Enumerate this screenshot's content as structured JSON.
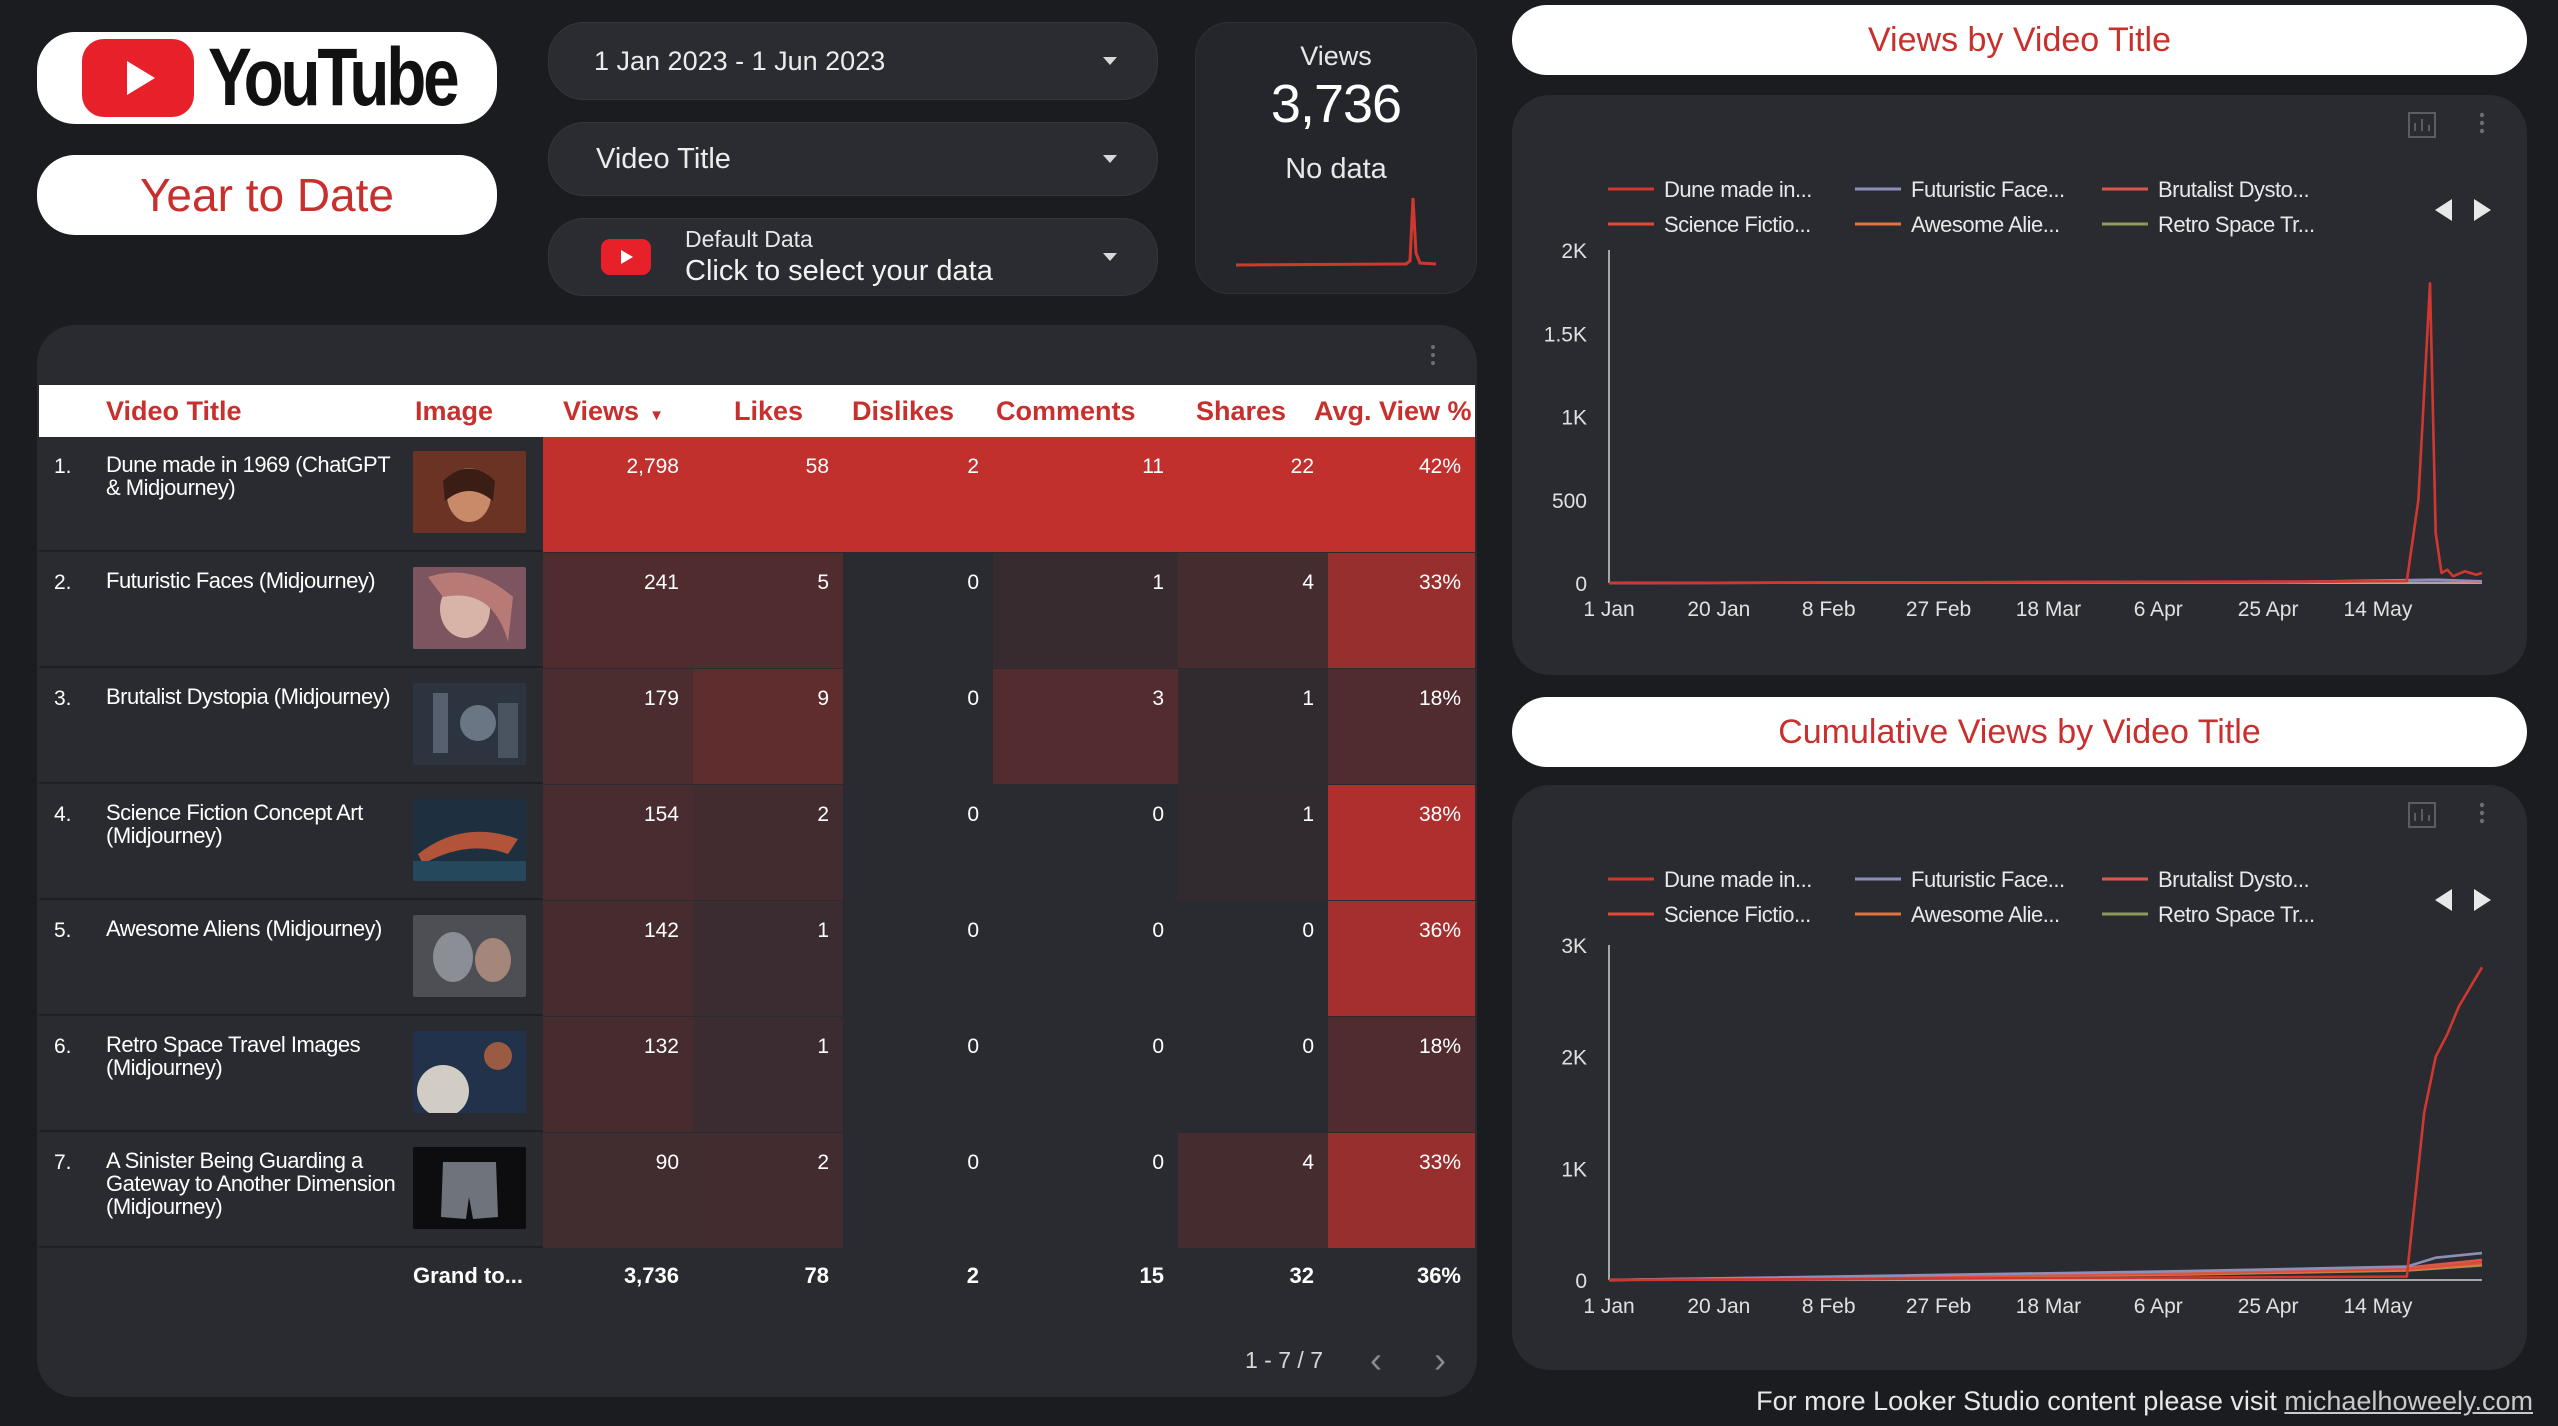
{
  "brand": {
    "logo_word": "YouTube",
    "period_label": "Year to Date"
  },
  "controls": {
    "date_range": "1 Jan 2023 - 1 Jun 2023",
    "dimension": "Video Title",
    "data_source_line1": "Default Data",
    "data_source_line2": "Click to select your data"
  },
  "scorecard": {
    "label": "Views",
    "value": "3,736",
    "comparison": "No data"
  },
  "table": {
    "headers": {
      "title": "Video Title",
      "image": "Image",
      "views": "Views",
      "likes": "Likes",
      "dislikes": "Dislikes",
      "comments": "Comments",
      "shares": "Shares",
      "avg_view": "Avg. View %"
    },
    "rows": [
      {
        "idx": "1.",
        "title": "Dune made in 1969 (ChatGPT & Midjourney)",
        "views": "2,798",
        "likes": "58",
        "dislikes": "2",
        "comments": "11",
        "shares": "22",
        "avg_view": "42%"
      },
      {
        "idx": "2.",
        "title": "Futuristic Faces (Midjourney)",
        "views": "241",
        "likes": "5",
        "dislikes": "0",
        "comments": "1",
        "shares": "4",
        "avg_view": "33%"
      },
      {
        "idx": "3.",
        "title": "Brutalist Dystopia (Midjourney)",
        "views": "179",
        "likes": "9",
        "dislikes": "0",
        "comments": "3",
        "shares": "1",
        "avg_view": "18%"
      },
      {
        "idx": "4.",
        "title": "Science Fiction Concept Art (Midjourney)",
        "views": "154",
        "likes": "2",
        "dislikes": "0",
        "comments": "0",
        "shares": "1",
        "avg_view": "38%"
      },
      {
        "idx": "5.",
        "title": "Awesome Aliens (Midjourney)",
        "views": "142",
        "likes": "1",
        "dislikes": "0",
        "comments": "0",
        "shares": "0",
        "avg_view": "36%"
      },
      {
        "idx": "6.",
        "title": "Retro Space Travel Images (Midjourney)",
        "views": "132",
        "likes": "1",
        "dislikes": "0",
        "comments": "0",
        "shares": "0",
        "avg_view": "18%"
      },
      {
        "idx": "7.",
        "title": "A Sinister Being Guarding a Gateway to Another Dimension (Midjourney)",
        "views": "90",
        "likes": "2",
        "dislikes": "0",
        "comments": "0",
        "shares": "4",
        "avg_view": "33%"
      }
    ],
    "grand_total": {
      "label": "Grand to...",
      "views": "3,736",
      "likes": "78",
      "dislikes": "2",
      "comments": "15",
      "shares": "32",
      "avg_view": "36%"
    },
    "pagination": "1 - 7 / 7"
  },
  "colors": {
    "accent": "#c8302e",
    "heat_strong": "#c0302d",
    "heat_mid": "#6b2a2b",
    "heat_low": "#3a2b2f"
  },
  "chart_data": [
    {
      "type": "line",
      "title": "Views by Video Title",
      "categories": [
        "1 Jan",
        "20 Jan",
        "8 Feb",
        "27 Feb",
        "18 Mar",
        "6 Apr",
        "25 Apr",
        "14 May"
      ],
      "yticks": [
        "0",
        "500",
        "1K",
        "1.5K",
        "2K"
      ],
      "ylim": [
        0,
        2000
      ],
      "legend": [
        {
          "name": "Dune made in...",
          "color": "#d0382f"
        },
        {
          "name": "Futuristic Face...",
          "color": "#8d8fb8"
        },
        {
          "name": "Brutalist Dysto...",
          "color": "#d9584b"
        },
        {
          "name": "Science Fictio...",
          "color": "#e24a36"
        },
        {
          "name": "Awesome Alie...",
          "color": "#e0733e"
        },
        {
          "name": "Retro Space Tr...",
          "color": "#8e9a5a"
        }
      ],
      "series": [
        {
          "name": "Dune made in...",
          "x": [
            0,
            138,
            140,
            142,
            143,
            144,
            145,
            146,
            148,
            150,
            151
          ],
          "values": [
            0,
            10,
            500,
            1800,
            300,
            60,
            80,
            40,
            70,
            50,
            60
          ]
        },
        {
          "name": "Futuristic Face...",
          "x": [
            0,
            120,
            143,
            151
          ],
          "values": [
            0,
            8,
            20,
            10
          ]
        },
        {
          "name": "Science Fictio...",
          "x": [
            0,
            120,
            143,
            151
          ],
          "values": [
            0,
            6,
            15,
            8
          ]
        }
      ]
    },
    {
      "type": "line",
      "title": "Cumulative Views by Video Title",
      "categories": [
        "1 Jan",
        "20 Jan",
        "8 Feb",
        "27 Feb",
        "18 Mar",
        "6 Apr",
        "25 Apr",
        "14 May"
      ],
      "yticks": [
        "0",
        "1K",
        "2K",
        "3K"
      ],
      "ylim": [
        0,
        3000
      ],
      "legend": [
        {
          "name": "Dune made in...",
          "color": "#d0382f"
        },
        {
          "name": "Futuristic Face...",
          "color": "#8d8fb8"
        },
        {
          "name": "Brutalist Dysto...",
          "color": "#d9584b"
        },
        {
          "name": "Science Fictio...",
          "color": "#e24a36"
        },
        {
          "name": "Awesome Alie...",
          "color": "#e0733e"
        },
        {
          "name": "Retro Space Tr...",
          "color": "#8e9a5a"
        }
      ],
      "series": [
        {
          "name": "Dune made in...",
          "x": [
            0,
            138,
            141,
            143,
            145,
            147,
            151
          ],
          "values": [
            0,
            30,
            1500,
            2000,
            2200,
            2450,
            2800
          ]
        },
        {
          "name": "Futuristic Face...",
          "x": [
            0,
            100,
            138,
            143,
            151
          ],
          "values": [
            0,
            80,
            120,
            200,
            241
          ]
        },
        {
          "name": "Brutalist Dysto...",
          "x": [
            0,
            100,
            138,
            151
          ],
          "values": [
            0,
            70,
            110,
            179
          ]
        },
        {
          "name": "Science Fictio...",
          "x": [
            0,
            100,
            138,
            151
          ],
          "values": [
            0,
            60,
            100,
            154
          ]
        },
        {
          "name": "Awesome Alie...",
          "x": [
            0,
            100,
            138,
            151
          ],
          "values": [
            0,
            55,
            90,
            142
          ]
        },
        {
          "name": "Retro Space Tr...",
          "x": [
            0,
            100,
            138,
            151
          ],
          "values": [
            0,
            50,
            85,
            132
          ]
        }
      ]
    }
  ],
  "footer": {
    "text": "For more Looker Studio content please visit",
    "link": "michaelhoweely.com"
  }
}
